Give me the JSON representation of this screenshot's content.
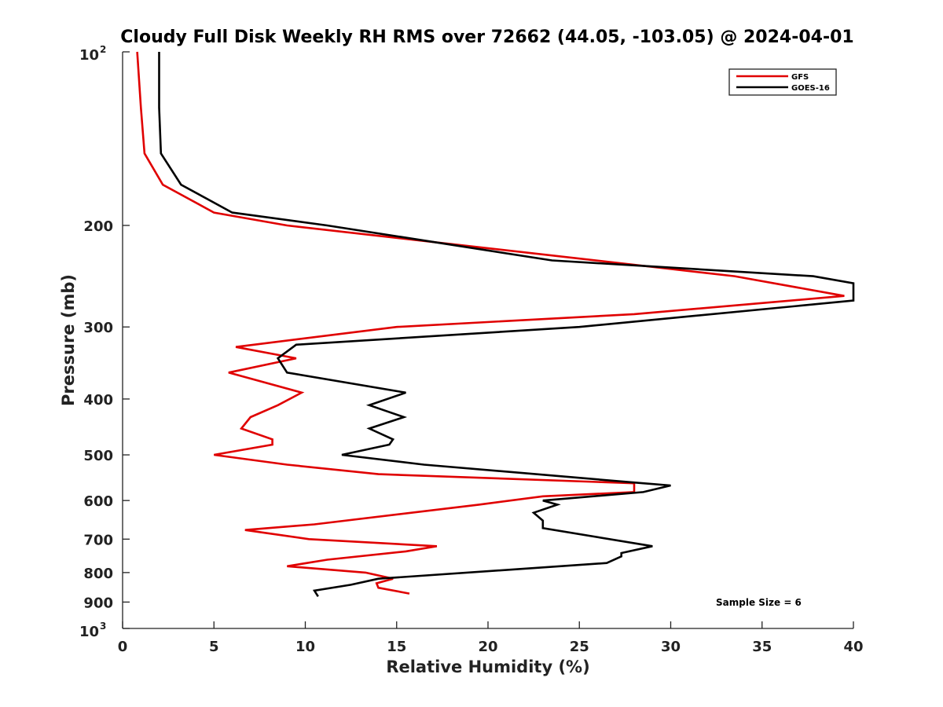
{
  "chart_data": {
    "type": "line",
    "title": "Cloudy Full Disk Weekly RH RMS over 72662 (44.05, -103.05) @ 2024-04-01",
    "xlabel": "Relative Humidity (%)",
    "ylabel": "Pressure (mb)",
    "xlim": [
      0,
      40
    ],
    "ylim": [
      100,
      1000
    ],
    "y_scale": "log",
    "y_reversed": true,
    "grid": false,
    "legend_position": "top-right",
    "x_ticks": [
      "0",
      "5",
      "10",
      "15",
      "20",
      "25",
      "30",
      "35",
      "40"
    ],
    "y_ticks": [
      {
        "value": 100,
        "base": "10",
        "exp": "2"
      },
      {
        "value": 200,
        "label": "200"
      },
      {
        "value": 300,
        "label": "300"
      },
      {
        "value": 400,
        "label": "400"
      },
      {
        "value": 500,
        "label": "500"
      },
      {
        "value": 600,
        "label": "600"
      },
      {
        "value": 700,
        "label": "700"
      },
      {
        "value": 800,
        "label": "800"
      },
      {
        "value": 900,
        "label": "900"
      },
      {
        "value": 1000,
        "base": "10",
        "exp": "3"
      }
    ],
    "series": [
      {
        "name": "GFS",
        "color": "#e00000",
        "points": [
          [
            0.8,
            100
          ],
          [
            1.0,
            125
          ],
          [
            1.2,
            150
          ],
          [
            2.2,
            170
          ],
          [
            5.0,
            190
          ],
          [
            9.0,
            200
          ],
          [
            33.5,
            245
          ],
          [
            39.5,
            265
          ],
          [
            28.0,
            285
          ],
          [
            15.0,
            300
          ],
          [
            6.2,
            325
          ],
          [
            9.5,
            340
          ],
          [
            5.8,
            360
          ],
          [
            9.8,
            390
          ],
          [
            8.5,
            410
          ],
          [
            7.0,
            430
          ],
          [
            6.5,
            450
          ],
          [
            8.2,
            470
          ],
          [
            8.2,
            480
          ],
          [
            5.0,
            500
          ],
          [
            9.0,
            520
          ],
          [
            14.0,
            540
          ],
          [
            28.0,
            560
          ],
          [
            28.0,
            580
          ],
          [
            23.0,
            590
          ],
          [
            19.5,
            610
          ],
          [
            10.5,
            660
          ],
          [
            6.7,
            675
          ],
          [
            10.2,
            700
          ],
          [
            17.2,
            720
          ],
          [
            15.5,
            735
          ],
          [
            11.2,
            760
          ],
          [
            9.0,
            780
          ],
          [
            13.3,
            800
          ],
          [
            14.8,
            820
          ],
          [
            13.9,
            835
          ],
          [
            14.0,
            850
          ],
          [
            15.7,
            870
          ]
        ]
      },
      {
        "name": "GOES-16",
        "color": "#000000",
        "points": [
          [
            2.0,
            100
          ],
          [
            2.0,
            125
          ],
          [
            2.1,
            150
          ],
          [
            3.2,
            170
          ],
          [
            6.0,
            190
          ],
          [
            11.2,
            200
          ],
          [
            23.5,
            230
          ],
          [
            37.8,
            245
          ],
          [
            40.0,
            252
          ],
          [
            40.0,
            270
          ],
          [
            25.0,
            300
          ],
          [
            9.5,
            322
          ],
          [
            8.5,
            340
          ],
          [
            9.0,
            360
          ],
          [
            15.5,
            390
          ],
          [
            13.5,
            410
          ],
          [
            15.4,
            430
          ],
          [
            13.5,
            450
          ],
          [
            14.8,
            470
          ],
          [
            14.6,
            480
          ],
          [
            12.0,
            500
          ],
          [
            16.5,
            520
          ],
          [
            28.5,
            560
          ],
          [
            30.0,
            565
          ],
          [
            28.5,
            580
          ],
          [
            23.0,
            600
          ],
          [
            23.8,
            610
          ],
          [
            22.5,
            630
          ],
          [
            23.0,
            650
          ],
          [
            23.0,
            670
          ],
          [
            29.0,
            720
          ],
          [
            27.3,
            740
          ],
          [
            27.3,
            750
          ],
          [
            26.5,
            770
          ],
          [
            14.0,
            820
          ],
          [
            12.5,
            840
          ],
          [
            10.5,
            860
          ],
          [
            10.7,
            880
          ]
        ]
      }
    ],
    "annotation": "Sample Size = 6"
  }
}
